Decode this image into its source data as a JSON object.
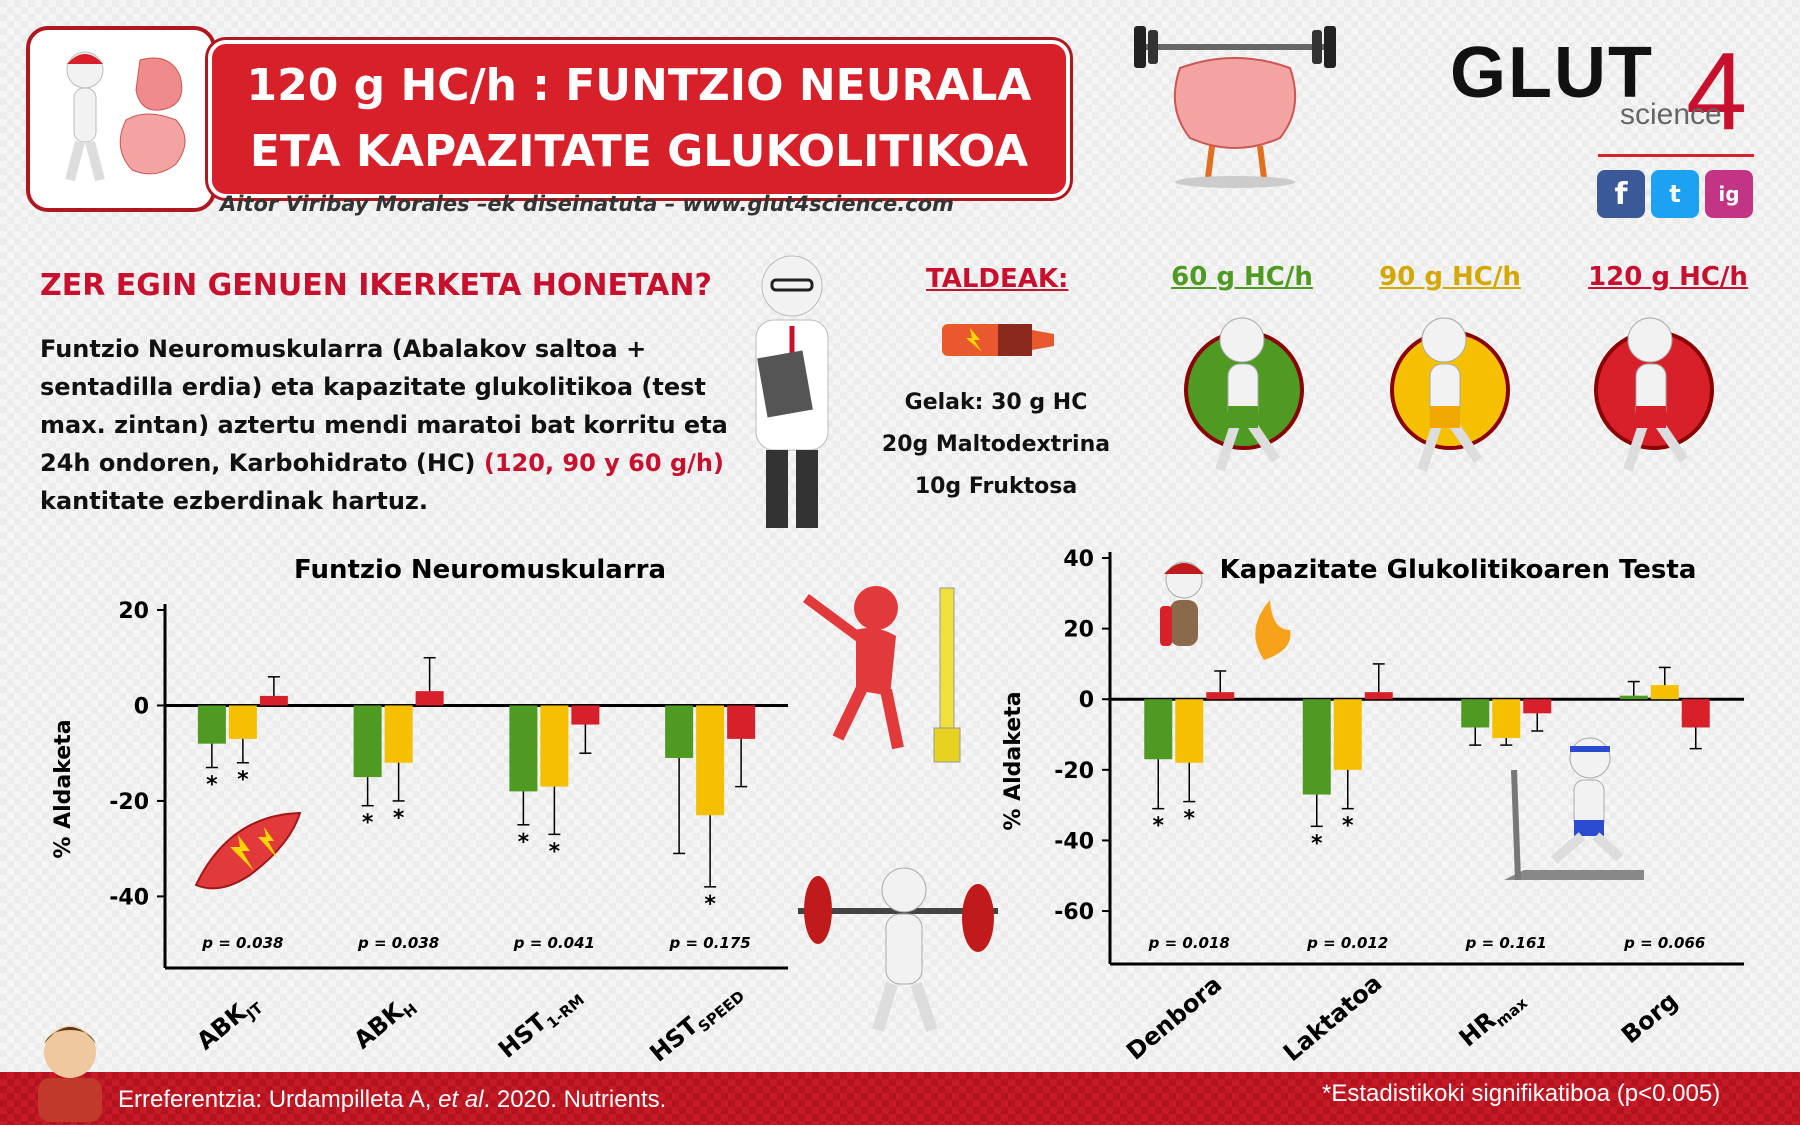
{
  "header": {
    "title_line1": "120 g HC/h : FUNTZIO NEURALA",
    "title_line2": "ETA KAPAZITATE GLUKOLITIKOA",
    "byline": "Aitor Viribay Morales –ek diseinatuta – www.glut4science.com"
  },
  "brand": {
    "name_left": "GLUT",
    "name_digit": "4",
    "sub": "science"
  },
  "social": {
    "facebook": "f",
    "twitter": "t",
    "instagram": "ig"
  },
  "intro": {
    "question": "ZER EGIN GENUEN IKERKETA HONETAN?",
    "text_1": "Funtzio Neuromuskularra (Abalakov saltoa + sentadilla erdia) eta kapazitate glukolitikoa (test max. zintan) aztertu mendi maratoi bat korritu eta 24h ondoren, Karbohidrato (HC)",
    "text_red": "(120, 90 y 60 g/h)",
    "text_2": "kantitate ezberdinak hartuz."
  },
  "groups": {
    "title": "TALDEAK:",
    "gel_1": "Gelak: 30 g HC",
    "gel_2": "20g Maltodextrina",
    "gel_3": "10g Fruktosa",
    "g60": "60 g HC/h",
    "g90": "90 g HC/h",
    "g120": "120 g HC/h"
  },
  "colors": {
    "g60": "#4e9a22",
    "g90": "#f5c000",
    "g120": "#d7202a",
    "accent": "#c8102e"
  },
  "chart_data": [
    {
      "type": "bar",
      "title": "Funtzio Neuromuskularra",
      "ylabel": "% Aldaketa",
      "ylim": [
        -55,
        20
      ],
      "yticks": [
        20,
        0,
        -20,
        -40
      ],
      "categories": [
        "ABKJT",
        "ABKH",
        "HST1-RM",
        "HSTSPEED"
      ],
      "category_main": [
        "ABK",
        "ABK",
        "HST",
        "HST"
      ],
      "category_sub": [
        "JT",
        "H",
        "1-RM",
        "SPEED"
      ],
      "p_values": [
        "p = 0.038",
        "p = 0.038",
        "p = 0.041",
        "p = 0.175"
      ],
      "series": [
        {
          "name": "60 g HC/h",
          "values": [
            -8,
            -15,
            -18,
            -11
          ],
          "errors": [
            5,
            6,
            7,
            20
          ],
          "sig": [
            true,
            true,
            true,
            false
          ]
        },
        {
          "name": "90 g HC/h",
          "values": [
            -7,
            -12,
            -17,
            -23
          ],
          "errors": [
            5,
            8,
            10,
            15
          ],
          "sig": [
            true,
            true,
            true,
            true
          ]
        },
        {
          "name": "120 g HC/h",
          "values": [
            2,
            3,
            -4,
            -7
          ],
          "errors": [
            4,
            7,
            6,
            10
          ],
          "sig": [
            false,
            false,
            false,
            false
          ]
        }
      ]
    },
    {
      "type": "bar",
      "title": "Kapazitate Glukolitikoaren Testa",
      "ylabel": "% Aldaketa",
      "ylim": [
        -75,
        40
      ],
      "yticks": [
        40,
        20,
        0,
        -20,
        -40,
        -60
      ],
      "categories": [
        "Denbora",
        "Laktatoa",
        "HRmax",
        "Borg"
      ],
      "category_main": [
        "Denbora",
        "Laktatoa",
        "HR",
        "Borg"
      ],
      "category_sub": [
        "",
        "",
        "max",
        ""
      ],
      "p_values": [
        "p = 0.018",
        "p = 0.012",
        "p = 0.161",
        "p = 0.066"
      ],
      "series": [
        {
          "name": "60 g HC/h",
          "values": [
            -17,
            -27,
            -8,
            1
          ],
          "errors": [
            14,
            9,
            5,
            4
          ],
          "sig": [
            true,
            true,
            false,
            false
          ]
        },
        {
          "name": "90 g HC/h",
          "values": [
            -18,
            -20,
            -11,
            4
          ],
          "errors": [
            11,
            11,
            2,
            5
          ],
          "sig": [
            true,
            true,
            false,
            false
          ]
        },
        {
          "name": "120 g HC/h",
          "values": [
            2,
            2,
            -4,
            -8
          ],
          "errors": [
            6,
            8,
            5,
            6
          ],
          "sig": [
            false,
            false,
            false,
            false
          ]
        }
      ]
    }
  ],
  "footer": {
    "ref_prefix": "Erreferentzia: Urdampilleta A, ",
    "ref_italic": "et al",
    "ref_suffix": ". 2020. Nutrients.",
    "significance": "*Estadistikoki signifikatiboa (p<0.005)"
  }
}
